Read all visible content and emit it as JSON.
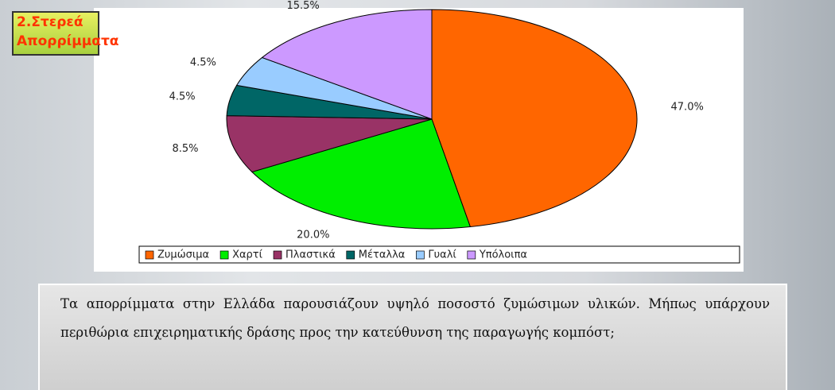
{
  "slide": {
    "title_lines": [
      "2.Στερεά",
      "Απορρίμματα"
    ],
    "text": "Τα απορρίμματα στην Ελλάδα παρουσιάζουν υψηλό ποσοστό ζυμώσιμων υλικών. Μήπως υπάρχουν περιθώρια επιχειρηματικής δράσης προς την κατεύθυνση της παραγωγής κομπόστ;"
  },
  "chart_data": {
    "type": "pie",
    "categories": [
      "Ζυμώσιμα",
      "Χαρτί",
      "Πλαστικά",
      "Μέταλλα",
      "Γυαλί",
      "Υπόλοιπα"
    ],
    "values": [
      47.0,
      20.0,
      8.5,
      4.5,
      4.5,
      15.5
    ],
    "value_labels": [
      "47.0%",
      "20.0%",
      "8.5%",
      "4.5%",
      "4.5%",
      "15.5%"
    ],
    "colors": [
      "#ff6600",
      "#00ee00",
      "#993366",
      "#006666",
      "#99ccff",
      "#cc99ff"
    ],
    "legend": "bottom"
  }
}
